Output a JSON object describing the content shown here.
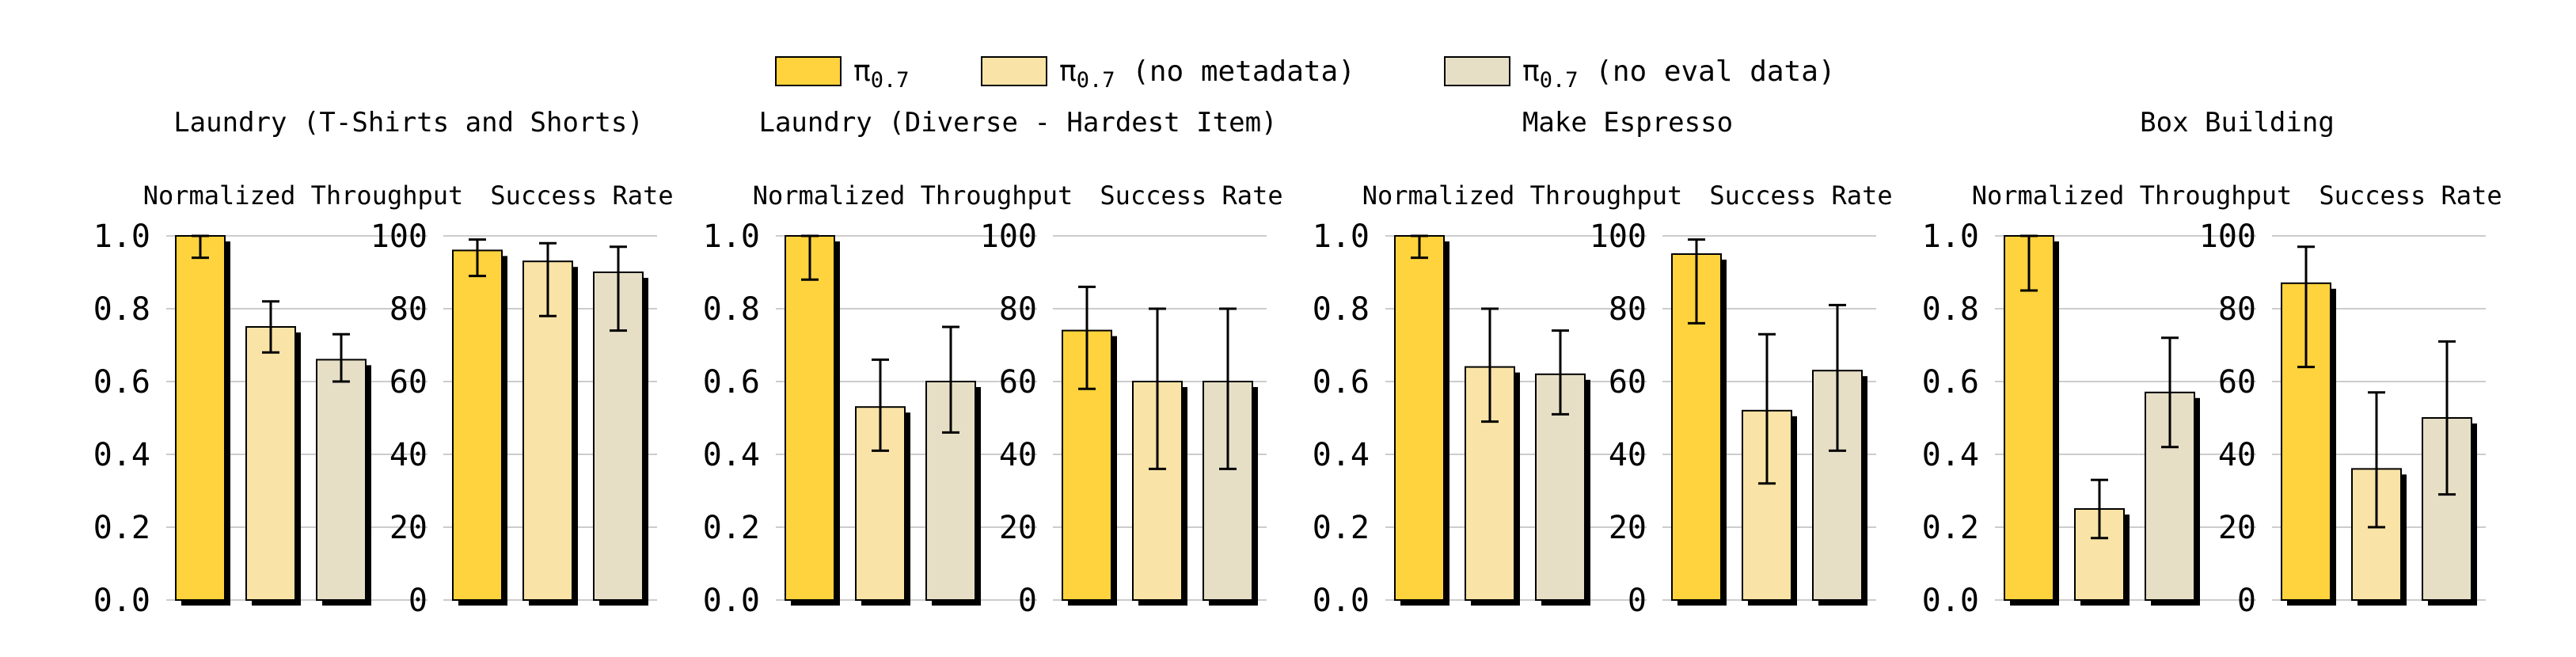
{
  "legend": {
    "items": [
      {
        "base": "π",
        "sub": "0.7",
        "suffix": "",
        "color": "#FFD33D"
      },
      {
        "base": "π",
        "sub": "0.7",
        "suffix": " (no metadata)",
        "color": "#F9E3A6"
      },
      {
        "base": "π",
        "sub": "0.7",
        "suffix": " (no eval data)",
        "color": "#E6DFC6"
      }
    ]
  },
  "colors": {
    "shadow": "#000000",
    "grid": "#cccccc",
    "edge": "#000000"
  },
  "chart_data": [
    {
      "type": "bar",
      "title": "Laundry (T-Shirts and Shorts)",
      "subplots": [
        {
          "ylabel": "Normalized Throughput",
          "ylim": [
            0,
            1.0
          ],
          "ticks": [
            "0.0",
            "0.2",
            "0.4",
            "0.6",
            "0.8",
            "1.0"
          ],
          "tick_values": [
            0,
            0.2,
            0.4,
            0.6,
            0.8,
            1.0
          ],
          "values": [
            1.0,
            0.75,
            0.66
          ],
          "err_low": [
            0.94,
            0.68,
            0.6
          ],
          "err_high": [
            1.0,
            0.82,
            0.73
          ]
        },
        {
          "ylabel": "Success Rate",
          "ylim": [
            0,
            100
          ],
          "ticks": [
            "0",
            "20",
            "40",
            "60",
            "80",
            "100"
          ],
          "tick_values": [
            0,
            20,
            40,
            60,
            80,
            100
          ],
          "values": [
            96,
            93,
            90
          ],
          "err_low": [
            89,
            78,
            74
          ],
          "err_high": [
            99,
            98,
            97
          ]
        }
      ]
    },
    {
      "type": "bar",
      "title": "Laundry (Diverse - Hardest Item)",
      "subplots": [
        {
          "ylabel": "Normalized Throughput",
          "ylim": [
            0,
            1.0
          ],
          "ticks": [
            "0.0",
            "0.2",
            "0.4",
            "0.6",
            "0.8",
            "1.0"
          ],
          "tick_values": [
            0,
            0.2,
            0.4,
            0.6,
            0.8,
            1.0
          ],
          "values": [
            1.0,
            0.53,
            0.6
          ],
          "err_low": [
            0.88,
            0.41,
            0.46
          ],
          "err_high": [
            1.0,
            0.66,
            0.75
          ]
        },
        {
          "ylabel": "Success Rate",
          "ylim": [
            0,
            100
          ],
          "ticks": [
            "0",
            "20",
            "40",
            "60",
            "80",
            "100"
          ],
          "tick_values": [
            0,
            20,
            40,
            60,
            80,
            100
          ],
          "values": [
            74,
            60,
            60
          ],
          "err_low": [
            58,
            36,
            36
          ],
          "err_high": [
            86,
            80,
            80
          ]
        }
      ]
    },
    {
      "type": "bar",
      "title": "Make Espresso",
      "subplots": [
        {
          "ylabel": "Normalized Throughput",
          "ylim": [
            0,
            1.0
          ],
          "ticks": [
            "0.0",
            "0.2",
            "0.4",
            "0.6",
            "0.8",
            "1.0"
          ],
          "tick_values": [
            0,
            0.2,
            0.4,
            0.6,
            0.8,
            1.0
          ],
          "values": [
            1.0,
            0.64,
            0.62
          ],
          "err_low": [
            0.94,
            0.49,
            0.51
          ],
          "err_high": [
            1.0,
            0.8,
            0.74
          ]
        },
        {
          "ylabel": "Success Rate",
          "ylim": [
            0,
            100
          ],
          "ticks": [
            "0",
            "20",
            "40",
            "60",
            "80",
            "100"
          ],
          "tick_values": [
            0,
            20,
            40,
            60,
            80,
            100
          ],
          "values": [
            95,
            52,
            63
          ],
          "err_low": [
            76,
            32,
            41
          ],
          "err_high": [
            99,
            73,
            81
          ]
        }
      ]
    },
    {
      "type": "bar",
      "title": "Box Building",
      "subplots": [
        {
          "ylabel": "Normalized Throughput",
          "ylim": [
            0,
            1.0
          ],
          "ticks": [
            "0.0",
            "0.2",
            "0.4",
            "0.6",
            "0.8",
            "1.0"
          ],
          "tick_values": [
            0,
            0.2,
            0.4,
            0.6,
            0.8,
            1.0
          ],
          "values": [
            1.0,
            0.25,
            0.57
          ],
          "err_low": [
            0.85,
            0.17,
            0.42
          ],
          "err_high": [
            1.0,
            0.33,
            0.72
          ]
        },
        {
          "ylabel": "Success Rate",
          "ylim": [
            0,
            100
          ],
          "ticks": [
            "0",
            "20",
            "40",
            "60",
            "80",
            "100"
          ],
          "tick_values": [
            0,
            20,
            40,
            60,
            80,
            100
          ],
          "values": [
            87,
            36,
            50
          ],
          "err_low": [
            64,
            20,
            29
          ],
          "err_high": [
            97,
            57,
            71
          ]
        }
      ]
    }
  ]
}
